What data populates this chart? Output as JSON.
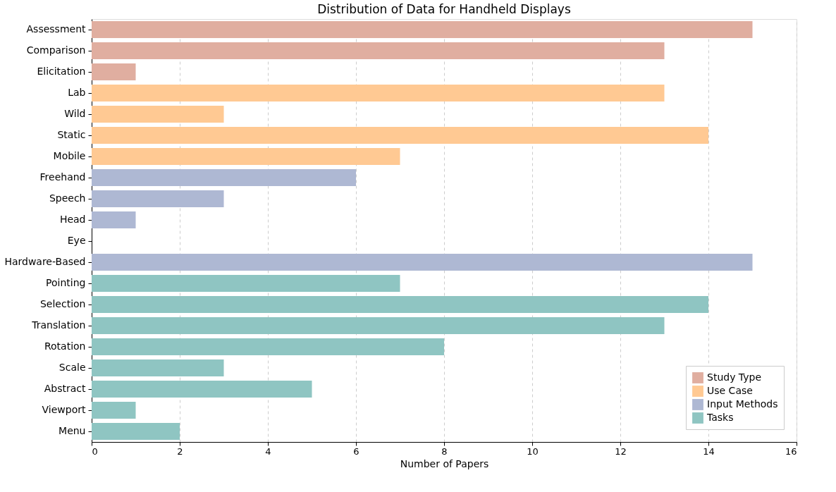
{
  "chart_data": {
    "type": "bar",
    "orientation": "horizontal",
    "title": "Distribution of Data for Handheld Displays",
    "xlabel": "Number of Papers",
    "categories": [
      "Assessment",
      "Comparison",
      "Elicitation",
      "Lab",
      "Wild",
      "Static",
      "Mobile",
      "Freehand",
      "Speech",
      "Head",
      "Eye",
      "Hardware-Based",
      "Pointing",
      "Selection",
      "Translation",
      "Rotation",
      "Scale",
      "Abstract",
      "Viewport",
      "Menu"
    ],
    "series": [
      {
        "name": "Study Type",
        "color": "#e0aea0",
        "values": [
          15,
          13,
          1,
          null,
          null,
          null,
          null,
          null,
          null,
          null,
          null,
          null,
          null,
          null,
          null,
          null,
          null,
          null,
          null,
          null
        ]
      },
      {
        "name": "Use Case",
        "color": "#ffc993",
        "values": [
          null,
          null,
          null,
          13,
          3,
          14,
          7,
          null,
          null,
          null,
          null,
          null,
          null,
          null,
          null,
          null,
          null,
          null,
          null,
          null
        ]
      },
      {
        "name": "Input Methods",
        "color": "#aeb8d3",
        "values": [
          null,
          null,
          null,
          null,
          null,
          null,
          null,
          6,
          3,
          1,
          0,
          15,
          null,
          null,
          null,
          null,
          null,
          null,
          null,
          null
        ]
      },
      {
        "name": "Tasks",
        "color": "#8fc5c2",
        "values": [
          null,
          null,
          null,
          null,
          null,
          null,
          null,
          null,
          null,
          null,
          null,
          null,
          7,
          14,
          13,
          8,
          3,
          5,
          1,
          2
        ]
      }
    ],
    "xlim": [
      0,
      16
    ],
    "xticks": [
      0,
      2,
      4,
      6,
      8,
      10,
      12,
      14,
      16
    ],
    "grid": "x",
    "legend": "bottom right"
  }
}
